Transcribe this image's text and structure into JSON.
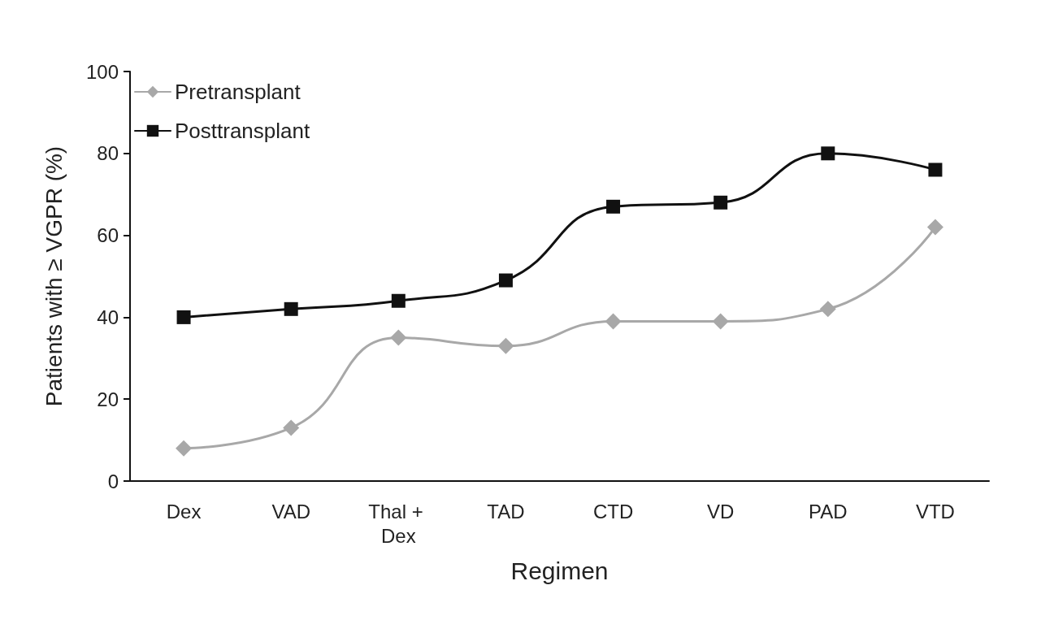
{
  "chart_data": {
    "type": "line",
    "xlabel": "Regimen",
    "ylabel": "Patients with ≥ VGPR (%)",
    "categories": [
      "Dex",
      "VAD",
      "Thal + Dex",
      "TAD",
      "CTD",
      "VD",
      "PAD",
      "VTD"
    ],
    "series": [
      {
        "name": "Pretransplant",
        "color": "#a8a8a8",
        "marker": "diamond",
        "values": [
          8,
          13,
          35,
          33,
          39,
          39,
          42,
          62
        ]
      },
      {
        "name": "Posttransplant",
        "color": "#111111",
        "marker": "square",
        "values": [
          40,
          42,
          44,
          49,
          67,
          68,
          80,
          76
        ]
      }
    ],
    "ylim": [
      0,
      100
    ],
    "yticks": [
      0,
      20,
      40,
      60,
      80,
      100
    ],
    "grid": false,
    "legend": "top left",
    "line_style": "solid"
  }
}
